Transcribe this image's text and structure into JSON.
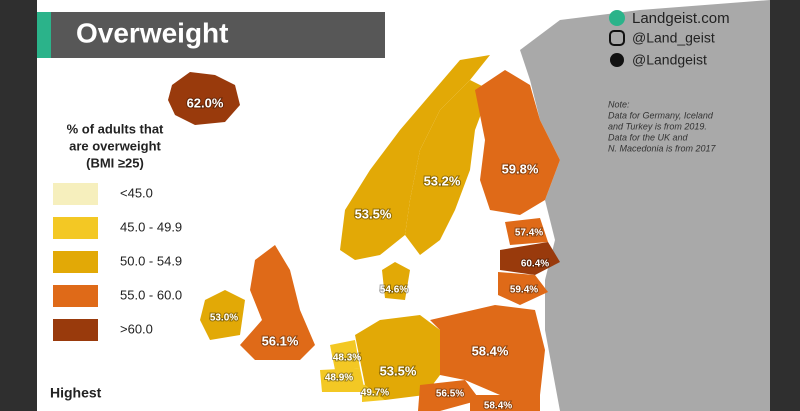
{
  "header": {
    "title": "Overweight"
  },
  "social": [
    "Landgeist.com",
    "@Land_geist",
    "@Landgeist"
  ],
  "note": [
    "Note:",
    "Data for Germany, Iceland",
    "and Turkey is from 2019.",
    "Data for the UK and",
    "N. Macedonia is from 2017"
  ],
  "legend": {
    "title": [
      "% of adults that",
      "are overweight",
      "(BMI ≥25)"
    ],
    "items": [
      {
        "label": "<45.0",
        "color": "#f6efbd"
      },
      {
        "label": "45.0 - 49.9",
        "color": "#f3c824"
      },
      {
        "label": "50.0 - 54.9",
        "color": "#e2a906"
      },
      {
        "label": "55.0 - 60.0",
        "color": "#df6a18"
      },
      {
        "label": ">60.0",
        "color": "#993a0c"
      }
    ]
  },
  "highest": "Highest",
  "regions": [
    {
      "label": "62.0%",
      "color": "#993a0c"
    },
    {
      "label": "53.5%",
      "color": "#e2a906"
    },
    {
      "label": "53.2%",
      "color": "#e2a906"
    },
    {
      "label": "59.8%",
      "color": "#df6a18"
    },
    {
      "label": "57.4%",
      "color": "#df6a18"
    },
    {
      "label": "60.4%",
      "color": "#993a0c"
    },
    {
      "label": "59.4%",
      "color": "#df6a18"
    },
    {
      "label": "54.6%",
      "color": "#e2a906"
    },
    {
      "label": "53.0%",
      "color": "#e2a906"
    },
    {
      "label": "56.1%",
      "color": "#df6a18"
    },
    {
      "label": "48.3%",
      "color": "#f3c824"
    },
    {
      "label": "48.9%",
      "color": "#f3c824"
    },
    {
      "label": "49.7%",
      "color": "#f3c824"
    },
    {
      "label": "53.5%",
      "color": "#e2a906"
    },
    {
      "label": "58.4%",
      "color": "#df6a18"
    },
    {
      "label": "56.5%",
      "color": "#df6a18"
    },
    {
      "label": "58.4%",
      "color": "#df6a18"
    }
  ]
}
